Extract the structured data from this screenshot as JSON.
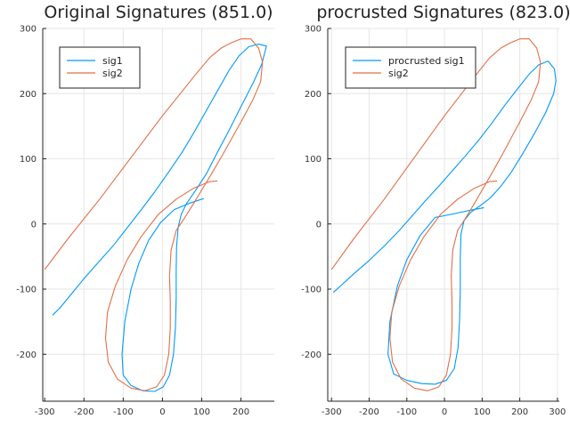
{
  "chart_data": [
    {
      "type": "line",
      "title": "Original Signatures (851.0)",
      "xlabel": "",
      "ylabel": "",
      "xlim": [
        -305,
        285
      ],
      "ylim": [
        -272,
        300
      ],
      "xticks": [
        -300,
        -200,
        -100,
        0,
        100,
        200
      ],
      "yticks": [
        -200,
        -100,
        0,
        100,
        200,
        300
      ],
      "xtick_labels": [
        "-300",
        "-200",
        "-100",
        "0",
        "100",
        "200"
      ],
      "ytick_labels": [
        "-200",
        "-100",
        "0",
        "100",
        "200",
        "300"
      ],
      "grid": true,
      "legend_position": "top-left",
      "series": [
        {
          "name": "sig1",
          "color": "#009AFA",
          "points": [
            [
              -280,
              -140
            ],
            [
              -260,
              -128
            ],
            [
              -230,
              -106
            ],
            [
              -200,
              -84
            ],
            [
              -165,
              -60
            ],
            [
              -125,
              -33
            ],
            [
              -90,
              -6
            ],
            [
              -55,
              21
            ],
            [
              -20,
              49
            ],
            [
              15,
              79
            ],
            [
              50,
              110
            ],
            [
              80,
              140
            ],
            [
              110,
              172
            ],
            [
              140,
              204
            ],
            [
              170,
              236
            ],
            [
              195,
              258
            ],
            [
              220,
              272
            ],
            [
              245,
              276
            ],
            [
              265,
              273
            ],
            [
              253,
              245
            ],
            [
              230,
              215
            ],
            [
              200,
              180
            ],
            [
              170,
              144
            ],
            [
              140,
              110
            ],
            [
              112,
              77
            ],
            [
              85,
              52
            ],
            [
              62,
              32
            ],
            [
              48,
              15
            ],
            [
              40,
              -5
            ],
            [
              36,
              -35
            ],
            [
              35,
              -70
            ],
            [
              35,
              -115
            ],
            [
              33,
              -160
            ],
            [
              28,
              -200
            ],
            [
              18,
              -232
            ],
            [
              2,
              -250
            ],
            [
              -20,
              -257
            ],
            [
              -50,
              -256
            ],
            [
              -80,
              -248
            ],
            [
              -100,
              -232
            ],
            [
              -103,
              -200
            ],
            [
              -96,
              -150
            ],
            [
              -80,
              -100
            ],
            [
              -60,
              -60
            ],
            [
              -35,
              -25
            ],
            [
              -5,
              2
            ],
            [
              30,
              22
            ],
            [
              70,
              32
            ],
            [
              105,
              39
            ]
          ]
        },
        {
          "name": "sig2",
          "color": "#E26F46",
          "points": [
            [
              -300,
              -70
            ],
            [
              -275,
              -50
            ],
            [
              -240,
              -22
            ],
            [
              -200,
              8
            ],
            [
              -160,
              38
            ],
            [
              -120,
              70
            ],
            [
              -80,
              102
            ],
            [
              -40,
              134
            ],
            [
              0,
              166
            ],
            [
              40,
              196
            ],
            [
              80,
              226
            ],
            [
              120,
              255
            ],
            [
              150,
              270
            ],
            [
              175,
              278
            ],
            [
              200,
              284
            ],
            [
              225,
              284
            ],
            [
              245,
              270
            ],
            [
              255,
              248
            ],
            [
              250,
              218
            ],
            [
              230,
              190
            ],
            [
              205,
              162
            ],
            [
              180,
              135
            ],
            [
              155,
              108
            ],
            [
              130,
              82
            ],
            [
              105,
              57
            ],
            [
              80,
              32
            ],
            [
              55,
              8
            ],
            [
              35,
              -10
            ],
            [
              22,
              -40
            ],
            [
              18,
              -80
            ],
            [
              20,
              -120
            ],
            [
              20,
              -160
            ],
            [
              16,
              -200
            ],
            [
              5,
              -232
            ],
            [
              -15,
              -250
            ],
            [
              -45,
              -256
            ],
            [
              -80,
              -252
            ],
            [
              -115,
              -238
            ],
            [
              -138,
              -212
            ],
            [
              -145,
              -175
            ],
            [
              -140,
              -135
            ],
            [
              -120,
              -95
            ],
            [
              -90,
              -55
            ],
            [
              -55,
              -20
            ],
            [
              -10,
              15
            ],
            [
              35,
              38
            ],
            [
              80,
              55
            ],
            [
              120,
              65
            ],
            [
              140,
              66
            ]
          ]
        }
      ]
    },
    {
      "type": "line",
      "title": "procrusted Signatures (823.0)",
      "xlabel": "",
      "ylabel": "",
      "xlim": [
        -310,
        305
      ],
      "ylim": [
        -272,
        300
      ],
      "xticks": [
        -300,
        -200,
        -100,
        0,
        100,
        200,
        300
      ],
      "yticks": [
        -200,
        -100,
        0,
        100,
        200,
        300
      ],
      "xtick_labels": [
        "-300",
        "-200",
        "-100",
        "0",
        "100",
        "200",
        "300"
      ],
      "ytick_labels": [
        "-200",
        "-100",
        "0",
        "100",
        "200",
        "300"
      ],
      "grid": true,
      "legend_position": "top-left",
      "series": [
        {
          "name": "procrusted sig1",
          "color": "#009AFA",
          "points": [
            [
              -295,
              -105
            ],
            [
              -270,
              -92
            ],
            [
              -240,
              -76
            ],
            [
              -200,
              -56
            ],
            [
              -160,
              -34
            ],
            [
              -120,
              -10
            ],
            [
              -85,
              13
            ],
            [
              -50,
              36
            ],
            [
              -15,
              58
            ],
            [
              20,
              81
            ],
            [
              55,
              104
            ],
            [
              90,
              128
            ],
            [
              125,
              154
            ],
            [
              160,
              182
            ],
            [
              195,
              208
            ],
            [
              225,
              230
            ],
            [
              250,
              244
            ],
            [
              275,
              250
            ],
            [
              292,
              238
            ],
            [
              296,
              220
            ],
            [
              290,
              200
            ],
            [
              268,
              170
            ],
            [
              240,
              140
            ],
            [
              210,
              110
            ],
            [
              178,
              80
            ],
            [
              150,
              58
            ],
            [
              122,
              40
            ],
            [
              95,
              28
            ],
            [
              70,
              18
            ],
            [
              52,
              5
            ],
            [
              44,
              -15
            ],
            [
              42,
              -50
            ],
            [
              42,
              -100
            ],
            [
              40,
              -150
            ],
            [
              36,
              -190
            ],
            [
              26,
              -222
            ],
            [
              5,
              -240
            ],
            [
              -25,
              -246
            ],
            [
              -60,
              -245
            ],
            [
              -100,
              -240
            ],
            [
              -135,
              -230
            ],
            [
              -150,
              -200
            ],
            [
              -145,
              -150
            ],
            [
              -125,
              -95
            ],
            [
              -100,
              -55
            ],
            [
              -65,
              -18
            ],
            [
              -25,
              10
            ],
            [
              20,
              15
            ],
            [
              60,
              20
            ],
            [
              105,
              25
            ]
          ]
        },
        {
          "name": "sig2",
          "color": "#E26F46",
          "points": [
            [
              -300,
              -70
            ],
            [
              -275,
              -50
            ],
            [
              -240,
              -22
            ],
            [
              -200,
              8
            ],
            [
              -160,
              38
            ],
            [
              -120,
              70
            ],
            [
              -80,
              102
            ],
            [
              -40,
              134
            ],
            [
              0,
              166
            ],
            [
              40,
              196
            ],
            [
              80,
              226
            ],
            [
              120,
              255
            ],
            [
              150,
              270
            ],
            [
              175,
              278
            ],
            [
              200,
              284
            ],
            [
              225,
              284
            ],
            [
              245,
              270
            ],
            [
              255,
              248
            ],
            [
              250,
              218
            ],
            [
              230,
              190
            ],
            [
              205,
              162
            ],
            [
              180,
              135
            ],
            [
              155,
              108
            ],
            [
              130,
              82
            ],
            [
              105,
              57
            ],
            [
              80,
              32
            ],
            [
              55,
              8
            ],
            [
              35,
              -10
            ],
            [
              22,
              -40
            ],
            [
              18,
              -80
            ],
            [
              20,
              -120
            ],
            [
              20,
              -160
            ],
            [
              16,
              -200
            ],
            [
              5,
              -232
            ],
            [
              -15,
              -250
            ],
            [
              -45,
              -256
            ],
            [
              -80,
              -252
            ],
            [
              -115,
              -238
            ],
            [
              -138,
              -212
            ],
            [
              -145,
              -175
            ],
            [
              -140,
              -135
            ],
            [
              -120,
              -95
            ],
            [
              -90,
              -55
            ],
            [
              -55,
              -20
            ],
            [
              -10,
              15
            ],
            [
              35,
              38
            ],
            [
              80,
              55
            ],
            [
              120,
              65
            ],
            [
              140,
              66
            ]
          ]
        }
      ]
    }
  ]
}
